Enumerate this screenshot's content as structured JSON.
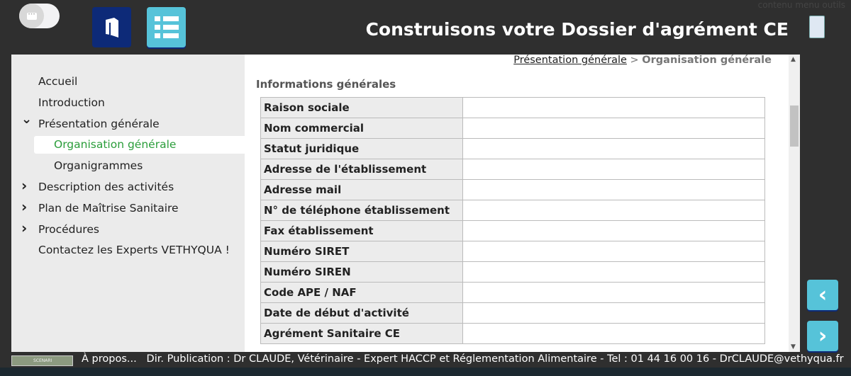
{
  "header": {
    "title": "Construisons votre Dossier d'agrément CE",
    "tools_nav": "contenu menu outils"
  },
  "sidebar": {
    "items": [
      {
        "label": "Accueil",
        "level": 0,
        "expanded": null
      },
      {
        "label": "Introduction",
        "level": 0,
        "expanded": null
      },
      {
        "label": "Présentation générale",
        "level": 0,
        "expanded": true
      },
      {
        "label": "Organisation générale",
        "level": 1,
        "active": true
      },
      {
        "label": "Organigrammes",
        "level": 1
      },
      {
        "label": "Description des activités",
        "level": 0,
        "expanded": false
      },
      {
        "label": "Plan de Maîtrise Sanitaire",
        "level": 0,
        "expanded": false
      },
      {
        "label": "Procédures",
        "level": 0,
        "expanded": false
      },
      {
        "label": "Contactez les Experts VETHYQUA !",
        "level": 0,
        "expanded": null
      }
    ]
  },
  "breadcrumb": {
    "parent": "Présentation générale",
    "sep": ">",
    "current": "Organisation générale"
  },
  "main": {
    "heading": "Informations générales",
    "rows": [
      {
        "label": "Raison sociale",
        "value": ""
      },
      {
        "label": "Nom commercial",
        "value": ""
      },
      {
        "label": "Statut juridique",
        "value": ""
      },
      {
        "label": "Adresse de l'établissement",
        "value": ""
      },
      {
        "label": "Adresse mail",
        "value": ""
      },
      {
        "label": "N° de téléphone établissement",
        "value": ""
      },
      {
        "label": "Fax établissement",
        "value": ""
      },
      {
        "label": "Numéro SIRET",
        "value": ""
      },
      {
        "label": "Numéro SIREN",
        "value": ""
      },
      {
        "label": "Code APE / NAF",
        "value": ""
      },
      {
        "label": "Date de début d'activité",
        "value": ""
      },
      {
        "label": "Agrément Sanitaire CE",
        "value": ""
      }
    ]
  },
  "footer": {
    "scenari": "SCENARI",
    "about": "À propos...",
    "text": "Dir. Publication : Dr CLAUDE, Vétérinaire - Expert HACCP et Réglementation Alimentaire - Tel : 01 44 16 00 16 - DrCLAUDE@vethyqua.fr"
  },
  "colors": {
    "accent": "#56c3d9",
    "navy": "#0d2a78",
    "active_green": "#2a9d3a"
  }
}
